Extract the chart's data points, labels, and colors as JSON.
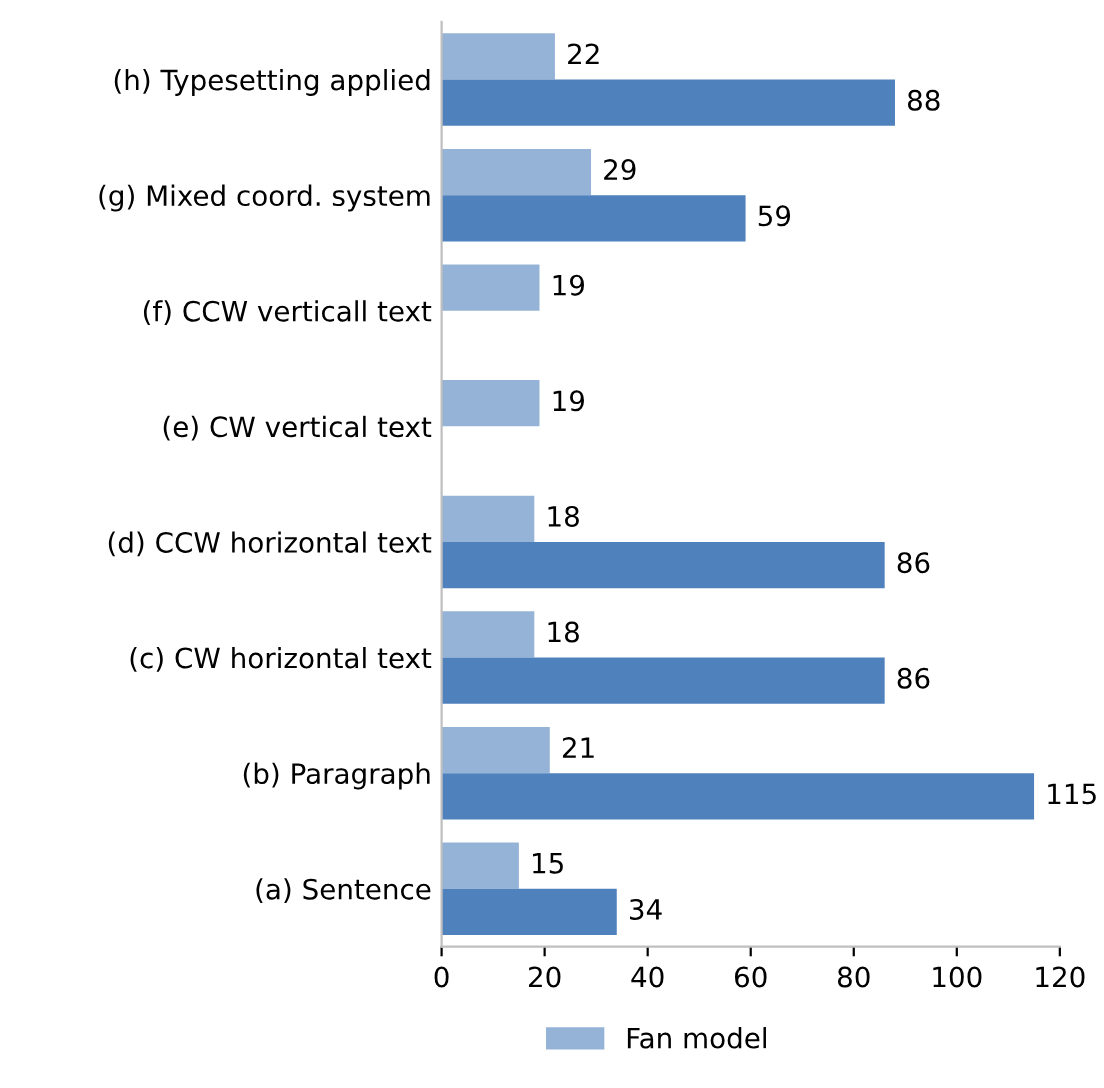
{
  "chart_data": {
    "type": "bar",
    "orientation": "horizontal",
    "categories": [
      "(h) Typesetting applied",
      "(g) Mixed coord. system",
      "(f) CCW verticall text",
      "(e) CW vertical text",
      "(d) CCW horizontal text",
      "(c) CW horizontal text",
      "(b) Paragraph",
      "(a) Sentence"
    ],
    "series": [
      {
        "name": "Fan model",
        "color": "#95b3d7",
        "values": [
          22,
          29,
          19,
          19,
          18,
          18,
          21,
          15
        ]
      },
      {
        "color": "#4f81bd",
        "values": [
          88,
          59,
          null,
          null,
          86,
          86,
          115,
          34
        ]
      }
    ],
    "xlim": [
      0,
      120
    ],
    "xticks": [
      0,
      20,
      40,
      60,
      80,
      100,
      120
    ],
    "data_labels": true,
    "grid": false,
    "legend": "bottom"
  }
}
